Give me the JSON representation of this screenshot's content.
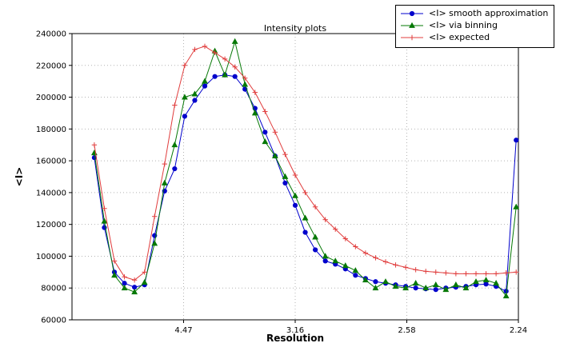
{
  "figure": {
    "background": "#ffffff"
  },
  "chart_data": {
    "type": "line",
    "title": "Intensity plots",
    "xlabel": "Resolution",
    "ylabel": "<I>",
    "grid": true,
    "legend_position": "upper right outside plot",
    "xlim": [
      0.0,
      0.2
    ],
    "ylim": [
      60000,
      240000
    ],
    "xticks": [
      0.05,
      0.1,
      0.15,
      0.2
    ],
    "xticklabels": [
      "4.47",
      "3.16",
      "2.58",
      "2.24"
    ],
    "yticks": [
      60000,
      80000,
      100000,
      120000,
      140000,
      160000,
      180000,
      200000,
      220000,
      240000
    ],
    "yticklabels": [
      "60000",
      "80000",
      "100000",
      "120000",
      "140000",
      "160000",
      "180000",
      "200000",
      "220000",
      "240000"
    ],
    "x": [
      0.01,
      0.0145,
      0.019,
      0.0235,
      0.028,
      0.0325,
      0.037,
      0.0415,
      0.046,
      0.0505,
      0.055,
      0.0595,
      0.064,
      0.0685,
      0.073,
      0.0775,
      0.082,
      0.0865,
      0.091,
      0.0955,
      0.1,
      0.1045,
      0.109,
      0.1135,
      0.118,
      0.1225,
      0.127,
      0.1315,
      0.136,
      0.1405,
      0.145,
      0.1495,
      0.154,
      0.1585,
      0.163,
      0.1675,
      0.172,
      0.1765,
      0.181,
      0.1855,
      0.19,
      0.1945,
      0.199
    ],
    "series": [
      {
        "name": "<I> smooth approximation",
        "color": "#0000cc",
        "marker": "circle",
        "values": [
          162000,
          118000,
          90000,
          83000,
          80500,
          82000,
          113000,
          141000,
          155000,
          188000,
          198000,
          207000,
          213000,
          214000,
          213000,
          205000,
          193000,
          178000,
          163000,
          146000,
          132000,
          115000,
          104000,
          97000,
          95000,
          92000,
          88000,
          86000,
          84000,
          83000,
          82000,
          81000,
          80000,
          79500,
          79000,
          80000,
          80500,
          81000,
          82000,
          82500,
          81000,
          78000,
          173000
        ]
      },
      {
        "name": "<I> via binning",
        "color": "#067806",
        "marker": "triangle",
        "values": [
          165000,
          122000,
          88000,
          80000,
          77500,
          83500,
          108000,
          146000,
          170000,
          200000,
          202000,
          210000,
          229000,
          214000,
          235000,
          208000,
          190000,
          172000,
          163000,
          150000,
          138000,
          124000,
          112000,
          100000,
          97000,
          94000,
          91000,
          85000,
          80000,
          84000,
          81000,
          80000,
          83000,
          80000,
          82000,
          79000,
          82000,
          80000,
          84000,
          85000,
          83000,
          75000,
          131000
        ]
      },
      {
        "name": "<I> expected",
        "color": "#e03c3c",
        "marker": "plus",
        "values": [
          170000,
          130000,
          97000,
          87000,
          85000,
          90000,
          125000,
          158000,
          195000,
          220000,
          230000,
          232000,
          228000,
          224000,
          219000,
          212000,
          203000,
          191000,
          178000,
          164000,
          151000,
          140000,
          131000,
          123000,
          117000,
          111000,
          106000,
          102000,
          99000,
          96500,
          94500,
          93000,
          91500,
          90500,
          90000,
          89500,
          89000,
          89000,
          89000,
          89000,
          89000,
          89500,
          90000
        ]
      }
    ]
  }
}
